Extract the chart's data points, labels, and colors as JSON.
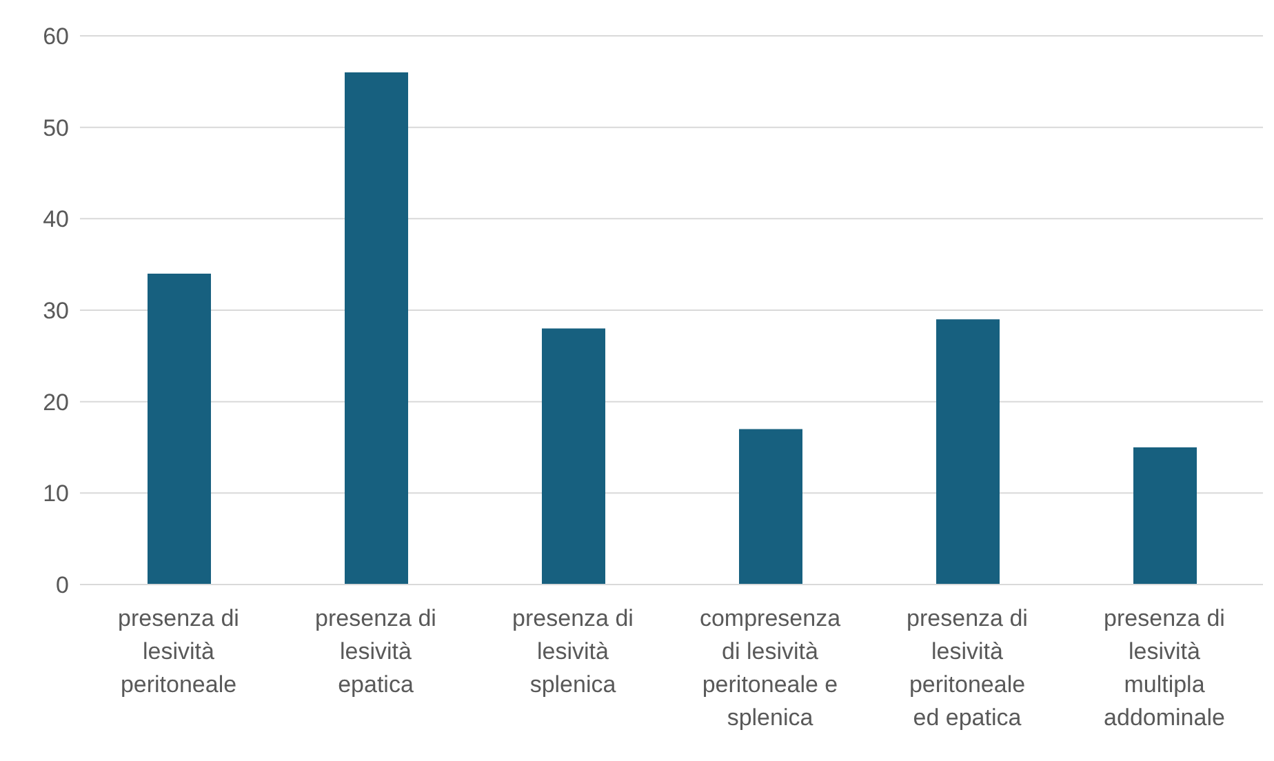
{
  "chart_data": {
    "type": "bar",
    "categories": [
      "presenza di lesività peritoneale",
      "presenza di lesività epatica",
      "presenza di lesività splenica",
      "compresenza di lesività peritoneale e splenica",
      "presenza di lesività peritoneale ed epatica",
      "presenza di lesività multipla addominale"
    ],
    "values": [
      34,
      56,
      28,
      17,
      29,
      15
    ],
    "color": "#17607f",
    "ylim": [
      0,
      60
    ],
    "yticks": [
      0,
      10,
      20,
      30,
      40,
      50,
      60
    ],
    "grid": "y",
    "legend": false
  }
}
